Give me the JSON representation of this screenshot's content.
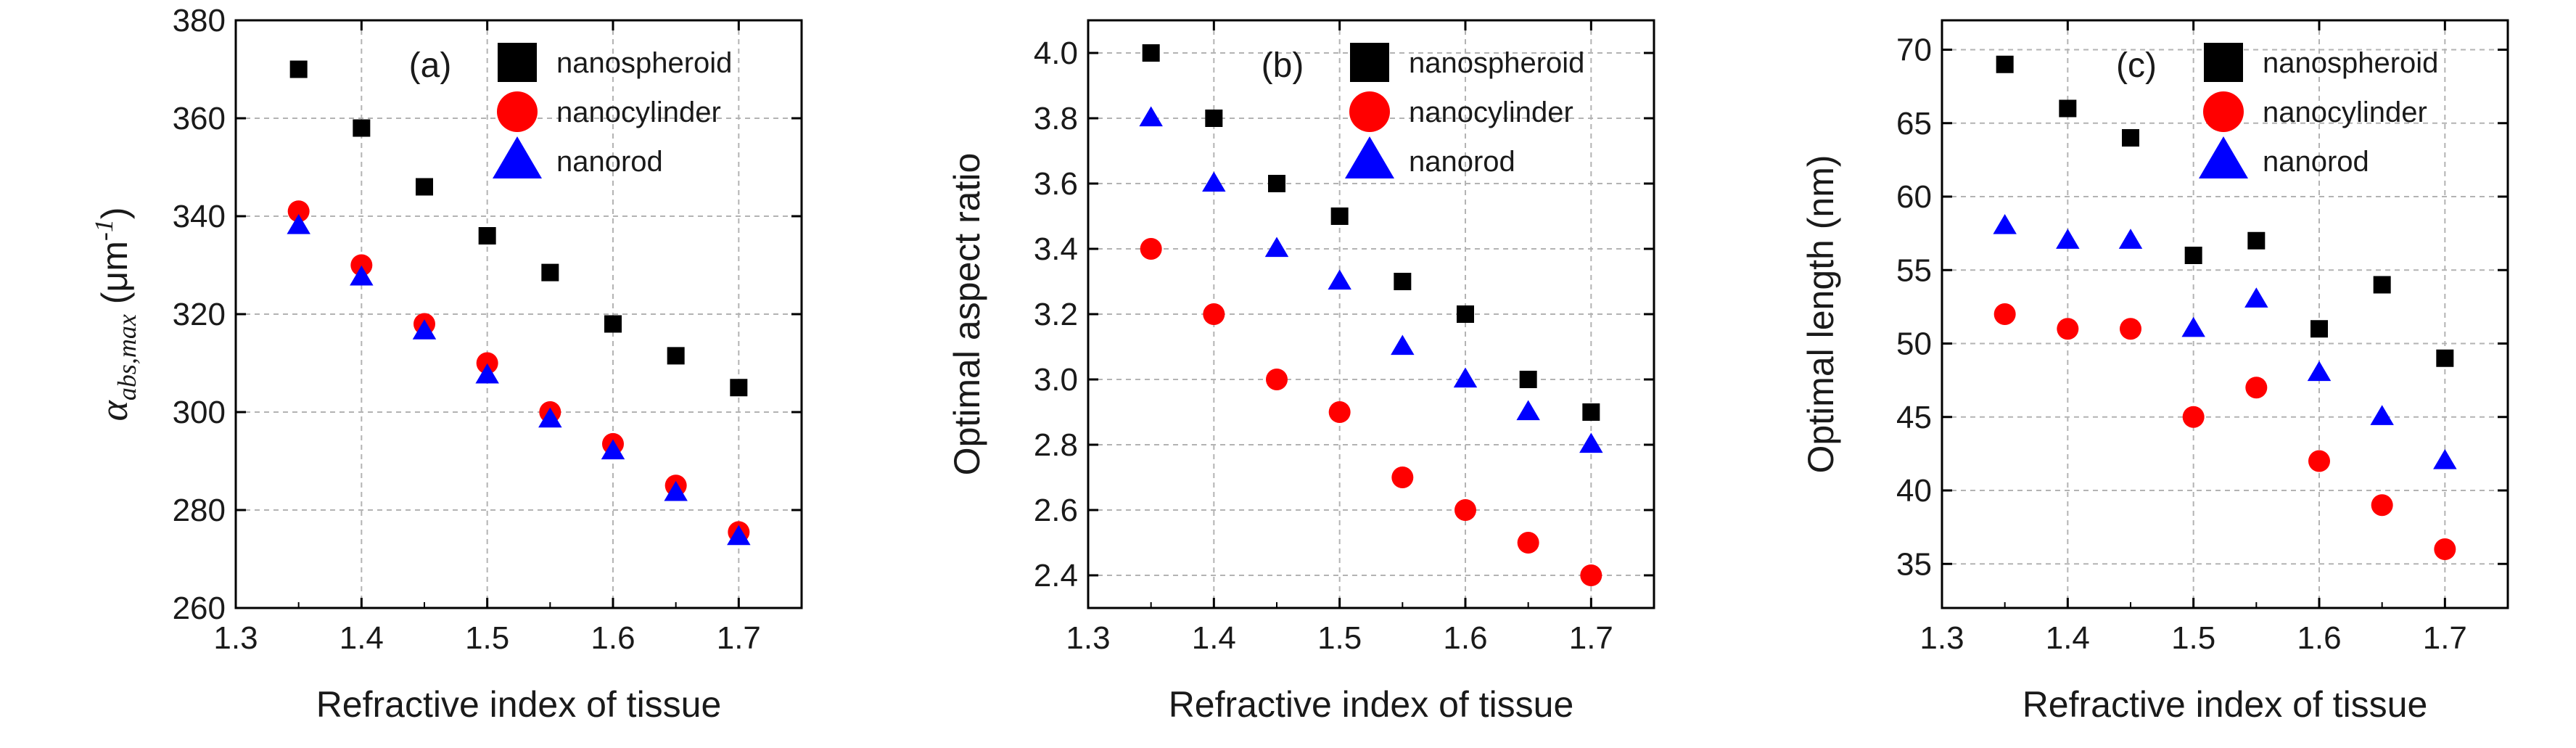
{
  "figure": {
    "background": "#ffffff"
  },
  "colors": {
    "nanospheroid": "#000000",
    "nanocylinder": "#ff0000",
    "nanorod": "#0000ff",
    "grid": "#b3b3b3",
    "frame": "#000000"
  },
  "chart_data": [
    {
      "type": "scatter",
      "panel_label": "(a)",
      "xlabel": "Refractive index of tissue",
      "ylabel": {
        "symbol": "α",
        "subscript": "abs,max",
        "unit_prefix": "(μm",
        "unit_exponent": "-1",
        "unit_suffix": ")"
      },
      "xlim": [
        1.3,
        1.75
      ],
      "ylim": [
        260,
        380
      ],
      "xticks": [
        1.3,
        1.4,
        1.5,
        1.6,
        1.7
      ],
      "xtick_labels": [
        "1.3",
        "1.4",
        "1.5",
        "1.6",
        "1.7"
      ],
      "yticks": [
        260,
        280,
        300,
        320,
        340,
        360,
        380
      ],
      "ytick_labels": [
        "260",
        "280",
        "300",
        "320",
        "340",
        "360",
        "380"
      ],
      "grid": true,
      "legend_position": "top-right",
      "x": [
        1.35,
        1.4,
        1.45,
        1.5,
        1.55,
        1.6,
        1.65,
        1.7
      ],
      "series": [
        {
          "name": "nanospheroid",
          "marker": "square",
          "values": [
            370,
            358,
            346,
            336,
            328.5,
            318,
            311.5,
            305
          ]
        },
        {
          "name": "nanocylinder",
          "marker": "circle",
          "values": [
            341,
            330,
            318,
            310,
            300,
            293.5,
            285,
            275.5
          ]
        },
        {
          "name": "nanorod",
          "marker": "triangle",
          "values": [
            338,
            327.5,
            316.5,
            307.5,
            298.5,
            292,
            283.5,
            274.5
          ]
        }
      ]
    },
    {
      "type": "scatter",
      "panel_label": "(b)",
      "xlabel": "Refractive index of tissue",
      "ylabel": {
        "text": "Optimal aspect ratio"
      },
      "xlim": [
        1.3,
        1.75
      ],
      "ylim": [
        2.3,
        4.1
      ],
      "xticks": [
        1.3,
        1.4,
        1.5,
        1.6,
        1.7
      ],
      "xtick_labels": [
        "1.3",
        "1.4",
        "1.5",
        "1.6",
        "1.7"
      ],
      "yticks": [
        2.4,
        2.6,
        2.8,
        3.0,
        3.2,
        3.4,
        3.6,
        3.8,
        4.0
      ],
      "ytick_labels": [
        "2.4",
        "2.6",
        "2.8",
        "3.0",
        "3.2",
        "3.4",
        "3.6",
        "3.8",
        "4.0"
      ],
      "grid": true,
      "legend_position": "top-right",
      "x": [
        1.35,
        1.4,
        1.45,
        1.5,
        1.55,
        1.6,
        1.65,
        1.7
      ],
      "series": [
        {
          "name": "nanospheroid",
          "marker": "square",
          "values": [
            4.0,
            3.8,
            3.6,
            3.5,
            3.3,
            3.2,
            3.0,
            2.9
          ]
        },
        {
          "name": "nanocylinder",
          "marker": "circle",
          "values": [
            3.4,
            3.2,
            3.0,
            2.9,
            2.7,
            2.6,
            2.5,
            2.4
          ]
        },
        {
          "name": "nanorod",
          "marker": "triangle",
          "values": [
            3.8,
            3.6,
            3.4,
            3.3,
            3.1,
            3.0,
            2.9,
            2.8
          ]
        }
      ]
    },
    {
      "type": "scatter",
      "panel_label": "(c)",
      "xlabel": "Refractive index of tissue",
      "ylabel": {
        "text": "Optimal length (nm)"
      },
      "xlim": [
        1.3,
        1.75
      ],
      "ylim": [
        32,
        72
      ],
      "xticks": [
        1.3,
        1.4,
        1.5,
        1.6,
        1.7
      ],
      "xtick_labels": [
        "1.3",
        "1.4",
        "1.5",
        "1.6",
        "1.7"
      ],
      "yticks": [
        35,
        40,
        45,
        50,
        55,
        60,
        65,
        70
      ],
      "ytick_labels": [
        "35",
        "40",
        "45",
        "50",
        "55",
        "60",
        "65",
        "70"
      ],
      "grid": true,
      "legend_position": "top-right",
      "x": [
        1.35,
        1.4,
        1.45,
        1.5,
        1.55,
        1.6,
        1.65,
        1.7
      ],
      "series": [
        {
          "name": "nanospheroid",
          "marker": "square",
          "values": [
            69,
            66,
            64,
            56,
            57,
            51,
            54,
            49
          ]
        },
        {
          "name": "nanocylinder",
          "marker": "circle",
          "values": [
            52,
            51,
            51,
            45,
            47,
            42,
            39,
            36
          ]
        },
        {
          "name": "nanorod",
          "marker": "triangle",
          "values": [
            58,
            57,
            57,
            51,
            53,
            48,
            45,
            42
          ]
        }
      ]
    }
  ]
}
